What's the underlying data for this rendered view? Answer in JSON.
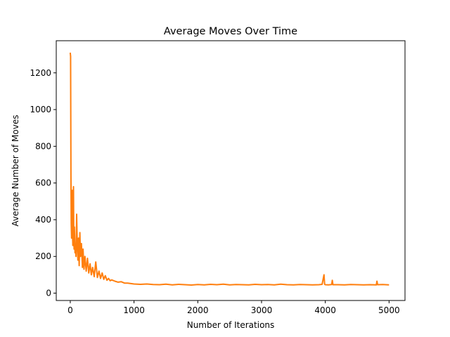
{
  "chart_data": {
    "type": "line",
    "title": "Average Moves Over Time",
    "xlabel": "Number of Iterations",
    "ylabel": "Average Number of Moves",
    "xlim": [
      -220,
      5250
    ],
    "ylim": [
      -40,
      1375
    ],
    "xticks": [
      0,
      1000,
      2000,
      3000,
      4000,
      5000
    ],
    "yticks": [
      0,
      200,
      400,
      600,
      800,
      1000,
      1200
    ],
    "grid": false,
    "legend": "none",
    "series": [
      {
        "color": "#ff7f0e",
        "x": [
          0,
          5,
          10,
          15,
          20,
          25,
          30,
          35,
          40,
          45,
          50,
          55,
          60,
          65,
          70,
          75,
          80,
          90,
          100,
          110,
          120,
          130,
          140,
          150,
          160,
          175,
          190,
          200,
          215,
          230,
          250,
          270,
          290,
          310,
          330,
          350,
          375,
          400,
          425,
          450,
          475,
          500,
          525,
          550,
          575,
          600,
          625,
          650,
          700,
          750,
          800,
          850,
          900,
          950,
          1000,
          1100,
          1200,
          1300,
          1400,
          1500,
          1600,
          1700,
          1800,
          1900,
          2000,
          2100,
          2200,
          2300,
          2400,
          2500,
          2600,
          2700,
          2800,
          2900,
          3000,
          3100,
          3200,
          3300,
          3400,
          3500,
          3600,
          3700,
          3800,
          3900,
          3950,
          3980,
          3990,
          4000,
          4050,
          4100,
          4110,
          4120,
          4200,
          4300,
          4400,
          4500,
          4600,
          4700,
          4800,
          4810,
          4820,
          4900,
          5000
        ],
        "y": [
          1310,
          1290,
          640,
          380,
          300,
          420,
          560,
          330,
          260,
          500,
          580,
          300,
          240,
          360,
          280,
          220,
          250,
          200,
          430,
          260,
          180,
          300,
          150,
          330,
          200,
          270,
          140,
          240,
          130,
          200,
          120,
          190,
          110,
          160,
          100,
          140,
          90,
          170,
          85,
          120,
          80,
          110,
          75,
          95,
          70,
          80,
          68,
          72,
          65,
          60,
          62,
          55,
          55,
          52,
          50,
          48,
          50,
          47,
          46,
          49,
          45,
          48,
          46,
          44,
          47,
          45,
          48,
          46,
          49,
          45,
          47,
          46,
          45,
          48,
          46,
          47,
          45,
          49,
          46,
          45,
          47,
          46,
          45,
          46,
          48,
          100,
          48,
          46,
          45,
          47,
          70,
          46,
          46,
          45,
          47,
          46,
          45,
          46,
          45,
          65,
          46,
          47,
          45
        ]
      }
    ]
  }
}
